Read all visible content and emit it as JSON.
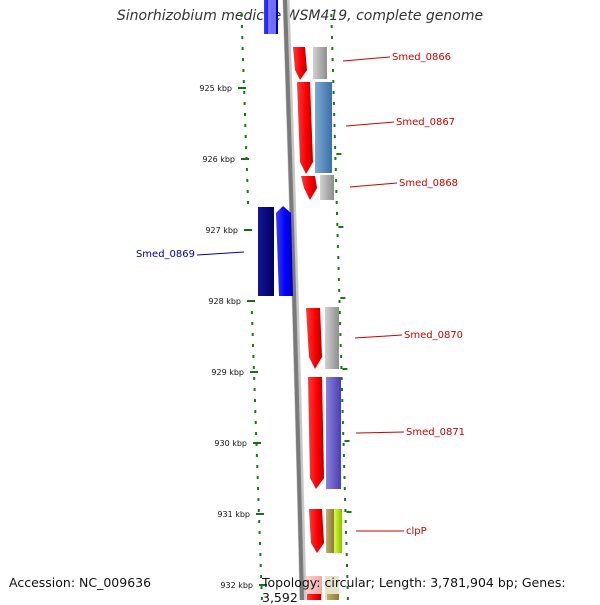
{
  "title": "Sinorhizobium medicae WSM419, complete genome",
  "footer": {
    "accession": "Accession: NC_009636",
    "topology": "Topology: circular; Length: 3,781,904 bp; Genes: 3,592"
  },
  "axis": {
    "ticks": [
      "925 kbp",
      "926 kbp",
      "927 kbp",
      "928 kbp",
      "929 kbp",
      "930 kbp",
      "931 kbp",
      "932 kbp"
    ]
  },
  "genes": [
    {
      "label": "Smed_0866",
      "strand": "+",
      "color": "#ff0000",
      "cog_color": "#b0b0b0"
    },
    {
      "label": "Smed_0867",
      "strand": "+",
      "color": "#ff0000",
      "cog_color": "#5b8ec6"
    },
    {
      "label": "Smed_0868",
      "strand": "+",
      "color": "#ff0000",
      "cog_color": "#b8b8b8"
    },
    {
      "label": "Smed_0869",
      "strand": "-",
      "color": "#0000ff",
      "cog_color": "#000080"
    },
    {
      "label": "Smed_0870",
      "strand": "+",
      "color": "#ff0000",
      "cog_color": "#b0b0b0"
    },
    {
      "label": "Smed_0871",
      "strand": "+",
      "color": "#ff0000",
      "cog_color": "#6a5acd"
    },
    {
      "label": "clpP",
      "strand": "+",
      "color": "#ff0000",
      "cog_color": "#9acd32"
    }
  ]
}
